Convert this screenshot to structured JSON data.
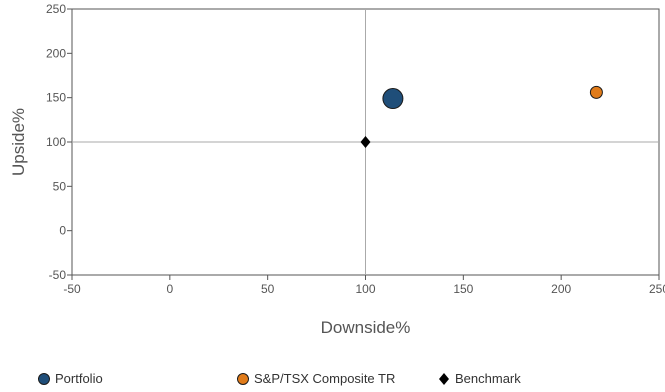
{
  "chart_data": {
    "type": "scatter",
    "xlabel": "Downside%",
    "ylabel": "Upside%",
    "xlim": [
      -50,
      250
    ],
    "ylim": [
      -50,
      250
    ],
    "xticks": [
      -50,
      0,
      50,
      100,
      150,
      200,
      250
    ],
    "yticks": [
      -50,
      0,
      50,
      100,
      150,
      200,
      250
    ],
    "reference_lines": {
      "x": 100,
      "y": 100
    },
    "grid": false,
    "legend_position": "bottom",
    "series": [
      {
        "name": "Portfolio",
        "x": 114,
        "y": 149,
        "marker": "circle",
        "size": "large",
        "color": "#1f4e79"
      },
      {
        "name": "S&P/TSX Composite TR",
        "x": 218,
        "y": 156,
        "marker": "circle",
        "size": "small",
        "color": "#e07b1a"
      },
      {
        "name": "Benchmark",
        "x": 100,
        "y": 100,
        "marker": "diamond",
        "size": "small",
        "color": "#000000"
      }
    ]
  }
}
